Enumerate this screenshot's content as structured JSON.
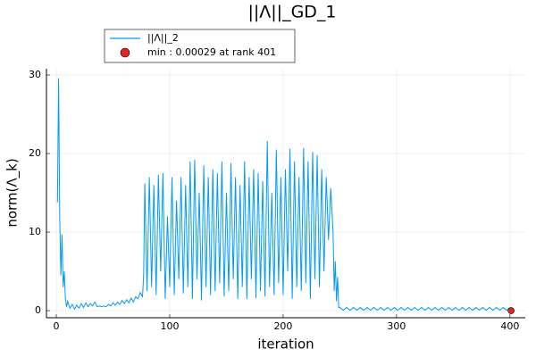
{
  "chart_data": {
    "type": "line",
    "title": "||Λ||_GD_1",
    "x_label": "iteration",
    "y_label": "norm(Λ_k)",
    "xlim": [
      -8.7,
      413.5
    ],
    "ylim": [
      -0.9,
      30.8
    ],
    "xticks": [
      0,
      100,
      200,
      300,
      400
    ],
    "yticks": [
      0,
      10,
      20,
      30
    ],
    "grid": true,
    "legend": "top-left",
    "series": [
      {
        "name": "||Λ||_2",
        "type": "line",
        "color": "#009af9",
        "x": [
          1,
          2,
          3,
          4,
          5,
          6,
          7,
          8,
          9,
          10,
          12,
          14,
          16,
          18,
          20,
          22,
          24,
          26,
          28,
          30,
          32,
          34,
          36,
          38,
          40,
          42,
          44,
          46,
          48,
          50,
          52,
          54,
          56,
          58,
          60,
          62,
          64,
          66,
          68,
          70,
          72,
          74,
          76,
          77,
          78,
          80,
          82,
          84,
          86,
          88,
          90,
          92,
          94,
          96,
          98,
          100,
          102,
          104,
          106,
          108,
          110,
          112,
          114,
          116,
          118,
          120,
          122,
          124,
          126,
          128,
          130,
          132,
          134,
          136,
          138,
          140,
          142,
          144,
          146,
          148,
          150,
          152,
          154,
          156,
          158,
          160,
          162,
          164,
          166,
          168,
          170,
          172,
          174,
          176,
          178,
          180,
          182,
          184,
          186,
          188,
          190,
          192,
          194,
          196,
          198,
          200,
          202,
          204,
          206,
          208,
          210,
          212,
          214,
          216,
          218,
          220,
          222,
          224,
          226,
          228,
          230,
          232,
          234,
          236,
          238,
          240,
          242,
          244,
          245,
          246,
          247,
          248,
          249,
          250,
          253,
          256,
          259,
          262,
          265,
          268,
          271,
          274,
          277,
          280,
          283,
          286,
          289,
          292,
          295,
          298,
          301,
          304,
          307,
          310,
          313,
          316,
          319,
          322,
          325,
          328,
          331,
          334,
          337,
          340,
          343,
          346,
          349,
          352,
          355,
          358,
          361,
          364,
          367,
          370,
          373,
          376,
          379,
          382,
          385,
          388,
          391,
          394,
          397,
          400
        ],
        "values": [
          13.8,
          29.6,
          12,
          4.5,
          9.7,
          3,
          5,
          1.5,
          0.5,
          1.2,
          0.3,
          0.8,
          0.2,
          0.7,
          0.3,
          0.9,
          0.4,
          1.0,
          0.5,
          0.9,
          0.6,
          1.1,
          0.5,
          0.6,
          0.5,
          0.6,
          0.5,
          0.8,
          0.6,
          1.0,
          0.7,
          1.1,
          0.8,
          1.3,
          0.9,
          1.4,
          1.0,
          1.6,
          1.1,
          1.8,
          1.5,
          2.3,
          1.8,
          4.5,
          16.2,
          2.5,
          17,
          3,
          16,
          2,
          17.3,
          5,
          17.5,
          1.5,
          12,
          3,
          17,
          2,
          14,
          4,
          17,
          2.2,
          16,
          3,
          19,
          1.5,
          19.2,
          4,
          15,
          1.3,
          18.5,
          3,
          17,
          2,
          18,
          2.5,
          17.5,
          3.5,
          19,
          1.8,
          15,
          2.5,
          18.8,
          4,
          17,
          1.5,
          16,
          3,
          19,
          1.5,
          17,
          4,
          18,
          1.6,
          17.5,
          2.5,
          16.5,
          1.8,
          21.6,
          3,
          15,
          2,
          20.5,
          3.5,
          17,
          2,
          18,
          5,
          20.6,
          1.5,
          19,
          3,
          17,
          2.5,
          20.7,
          3.5,
          19,
          1.5,
          20.2,
          4,
          19.8,
          3,
          18,
          5,
          17,
          9,
          15.6,
          10,
          2.5,
          6.3,
          1.2,
          4.3,
          0.4,
          0.4,
          0.05,
          0.4,
          0.05,
          0.4,
          0.05,
          0.4,
          0.05,
          0.4,
          0.05,
          0.4,
          0.05,
          0.4,
          0.05,
          0.4,
          0.05,
          0.4,
          0.05,
          0.4,
          0.05,
          0.4,
          0.05,
          0.4,
          0.05,
          0.4,
          0.05,
          0.4,
          0.05,
          0.4,
          0.05,
          0.4,
          0.05,
          0.4,
          0.05,
          0.4,
          0.05,
          0.4,
          0.05,
          0.4,
          0.05,
          0.4,
          0.05,
          0.4,
          0.05,
          0.4,
          0.05,
          0.4,
          0.05,
          0.4,
          0.05,
          0.4
        ]
      },
      {
        "name": "min : 0.00029 at rank 401",
        "type": "scatter",
        "color": "#e8221c",
        "x": [
          401
        ],
        "values": [
          0.00029
        ]
      }
    ]
  }
}
